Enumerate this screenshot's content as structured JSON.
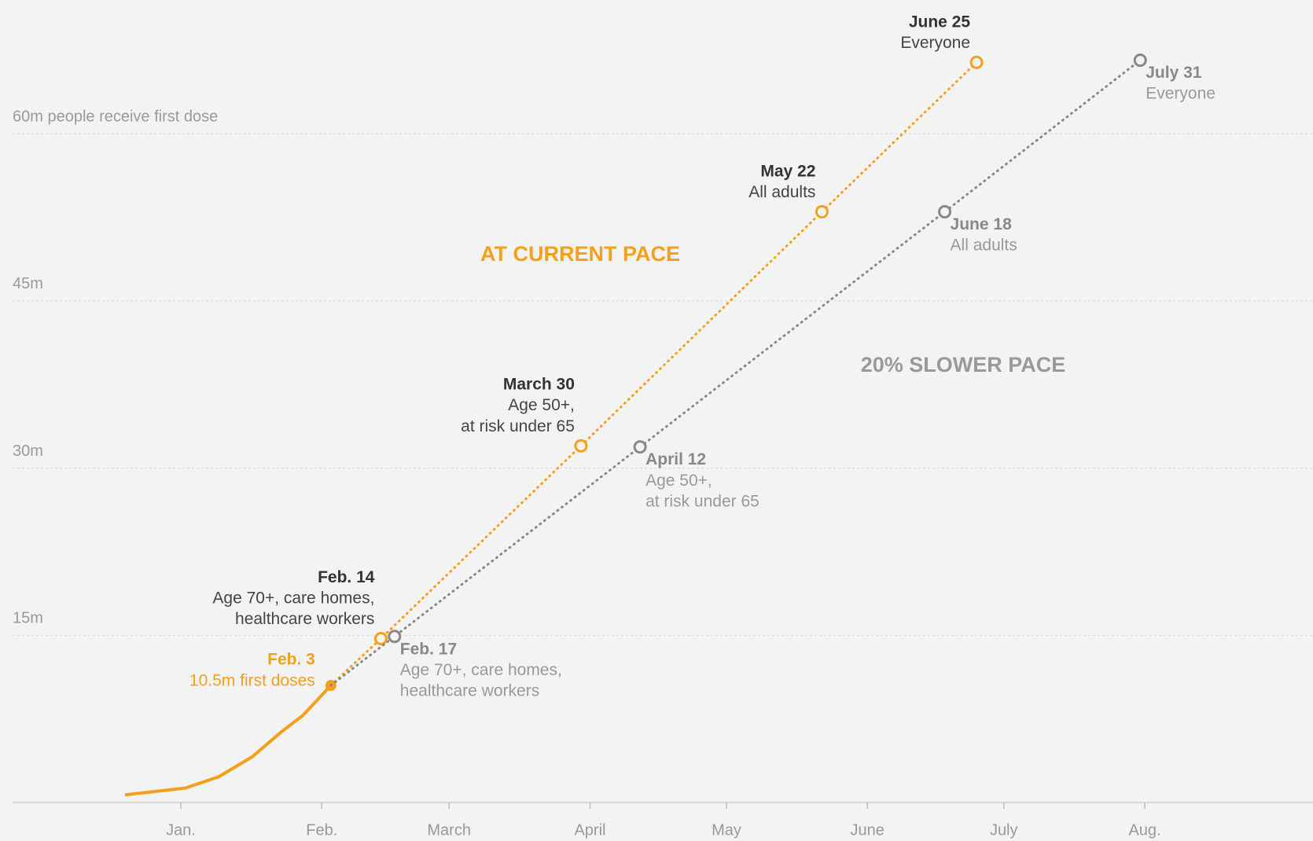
{
  "chart_data": {
    "type": "line",
    "xlim": [
      -36,
      250
    ],
    "ylim": [
      0,
      72
    ],
    "xticks": [
      {
        "value": 1,
        "label": "Jan."
      },
      {
        "value": 32,
        "label": "Feb."
      },
      {
        "value": 60,
        "label": "March"
      },
      {
        "value": 91,
        "label": "April"
      },
      {
        "value": 121,
        "label": "May"
      },
      {
        "value": 152,
        "label": "June"
      },
      {
        "value": 182,
        "label": "July"
      },
      {
        "value": 213,
        "label": "Aug."
      }
    ],
    "yticks": [
      {
        "value": 15,
        "label": "15m"
      },
      {
        "value": 30,
        "label": "30m"
      },
      {
        "value": 45,
        "label": "45m"
      },
      {
        "value": 60,
        "label": "60m people receive first dose"
      }
    ],
    "grid": true,
    "series": [
      {
        "color": "#f5a01a",
        "style": "solid",
        "x": [
          -11,
          2,
          9.3,
          16.7,
          23,
          27.8,
          32.4,
          34
        ],
        "values": [
          0.7,
          1.3,
          2.3,
          4.1,
          6.3,
          7.8,
          9.8,
          10.5
        ],
        "point_labels": [
          null,
          null,
          null,
          null,
          null,
          null,
          null,
          {
            "date": "Feb. 3",
            "text": [
              "10.5m first doses"
            ]
          }
        ]
      },
      {
        "name": "AT CURRENT PACE",
        "color": "#f5a01a",
        "style": "dotted",
        "x": [
          34,
          45,
          89,
          142,
          176
        ],
        "values": [
          10.5,
          14.7,
          32,
          53,
          66.4
        ],
        "point_labels": [
          null,
          {
            "date": "Feb. 14",
            "text": [
              "Age 70+, care homes,",
              "healthcare workers"
            ]
          },
          {
            "date": "March 30",
            "text": [
              "Age 50+,",
              "at risk under 65"
            ]
          },
          {
            "date": "May 22",
            "text": [
              "All adults"
            ]
          },
          {
            "date": "June 25",
            "text": [
              "Everyone"
            ]
          }
        ]
      },
      {
        "name": "20% SLOWER PACE",
        "color": "#888888",
        "style": "dotted",
        "x": [
          34,
          48,
          102,
          169,
          212
        ],
        "values": [
          10.5,
          14.9,
          31.9,
          53,
          66.6
        ],
        "point_labels": [
          null,
          {
            "date": "Feb. 17",
            "text": [
              "Age 70+, care homes,",
              "healthcare workers"
            ]
          },
          {
            "date": "April 12",
            "text": [
              "Age 50+,",
              "at risk under 65"
            ]
          },
          {
            "date": "June 18",
            "text": [
              "All adults"
            ]
          },
          {
            "date": "July 31",
            "text": [
              "Everyone"
            ]
          }
        ]
      }
    ]
  }
}
